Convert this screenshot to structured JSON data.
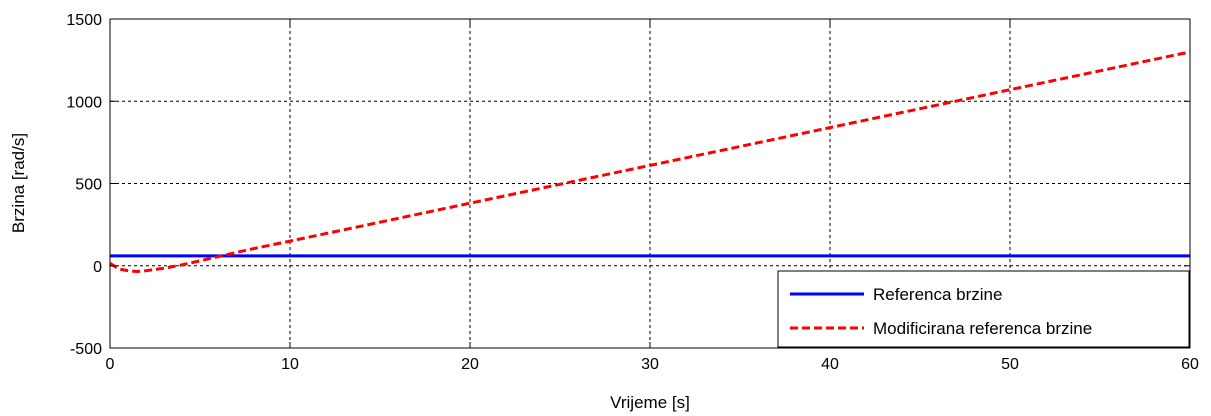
{
  "chart_data": {
    "type": "line",
    "title": "",
    "xlabel": "Vrijeme [s]",
    "ylabel": "Brzina [rad/s]",
    "xlim": [
      0,
      60
    ],
    "ylim": [
      -500,
      1500
    ],
    "xticks": [
      0,
      10,
      20,
      30,
      40,
      50,
      60
    ],
    "yticks": [
      -500,
      0,
      500,
      1000,
      1500
    ],
    "grid": true,
    "legend_position": "bottom-right",
    "series": [
      {
        "name": "Referenca brzine",
        "color": "#0000ff",
        "style": "solid",
        "x": [
          0,
          60
        ],
        "y": [
          60,
          60
        ]
      },
      {
        "name": "Modificirana referenca brzine",
        "color": "#ff0000",
        "style": "dashed",
        "x": [
          0,
          0.5,
          1,
          1.5,
          2,
          3,
          4,
          5,
          6,
          7,
          8,
          10,
          15,
          20,
          25,
          30,
          35,
          40,
          45,
          50,
          55,
          60
        ],
        "y": [
          15,
          -20,
          -30,
          -35,
          -30,
          -15,
          5,
          30,
          55,
          80,
          105,
          150,
          265,
          380,
          495,
          610,
          725,
          840,
          955,
          1070,
          1185,
          1300
        ]
      }
    ]
  }
}
